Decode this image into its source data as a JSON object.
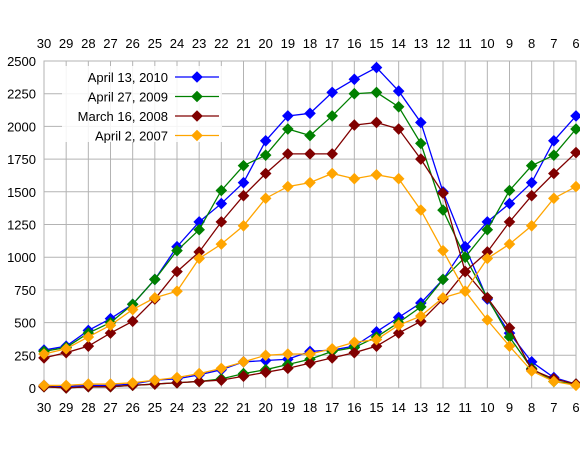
{
  "chart_data": {
    "type": "line",
    "title": "",
    "xlabel": "",
    "ylabel": "",
    "x_ticks": [
      "30",
      "29",
      "28",
      "27",
      "26",
      "25",
      "24",
      "23",
      "22",
      "21",
      "20",
      "19",
      "18",
      "17",
      "16",
      "15",
      "14",
      "13",
      "12",
      "11",
      "10",
      "9",
      "8",
      "7",
      "6"
    ],
    "ylim": [
      0,
      2500
    ],
    "y_ticks": [
      0,
      250,
      500,
      750,
      1000,
      1250,
      1500,
      1750,
      2000,
      2250,
      2500
    ],
    "grid": true,
    "legend_position": "top-left",
    "series": [
      {
        "name": "April 13, 2010",
        "color": "#0000ff",
        "rising": [
          290,
          320,
          440,
          530,
          640,
          830,
          1080,
          1270,
          1410,
          1570,
          1890,
          2080,
          2100,
          2260,
          2360,
          2450,
          2270,
          2030,
          1500,
          1080,
          680,
          420,
          200,
          80,
          30
        ],
        "falling": [
          20,
          10,
          20,
          20,
          30,
          60,
          70,
          100,
          140,
          200,
          210,
          220,
          280,
          290,
          320,
          430,
          540,
          650,
          830,
          1080,
          1270,
          1410,
          1570,
          1890,
          2080
        ]
      },
      {
        "name": "April 27, 2009",
        "color": "#008000",
        "rising": [
          280,
          310,
          420,
          500,
          640,
          830,
          1050,
          1210,
          1510,
          1700,
          1780,
          1980,
          1930,
          2080,
          2250,
          2260,
          2150,
          1870,
          1360,
          1000,
          690,
          390,
          150,
          50,
          30
        ],
        "falling": [
          10,
          0,
          10,
          10,
          20,
          30,
          40,
          50,
          70,
          110,
          140,
          180,
          220,
          280,
          310,
          390,
          500,
          620,
          830,
          1000,
          1210,
          1510,
          1700,
          1780,
          1980
        ]
      },
      {
        "name": "March 16, 2008",
        "color": "#800000",
        "rising": [
          230,
          270,
          320,
          420,
          510,
          680,
          890,
          1040,
          1270,
          1470,
          1640,
          1790,
          1790,
          1790,
          2010,
          2030,
          1980,
          1750,
          1490,
          890,
          690,
          460,
          140,
          70,
          30
        ],
        "falling": [
          10,
          0,
          10,
          10,
          20,
          30,
          40,
          50,
          60,
          90,
          120,
          150,
          190,
          230,
          270,
          320,
          420,
          510,
          680,
          890,
          1040,
          1270,
          1470,
          1640,
          1800
        ]
      },
      {
        "name": "April 2, 2007",
        "color": "#ffa500",
        "rising": [
          260,
          300,
          390,
          480,
          600,
          690,
          740,
          990,
          1100,
          1240,
          1450,
          1540,
          1570,
          1640,
          1600,
          1630,
          1600,
          1360,
          1050,
          740,
          520,
          320,
          130,
          50,
          20
        ],
        "falling": [
          20,
          20,
          30,
          30,
          40,
          60,
          80,
          110,
          150,
          200,
          250,
          260,
          260,
          300,
          350,
          370,
          480,
          550,
          690,
          740,
          990,
          1100,
          1240,
          1450,
          1540
        ]
      }
    ]
  }
}
